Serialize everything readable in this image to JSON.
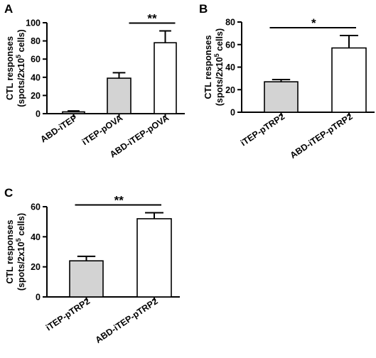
{
  "chart_data": [
    {
      "panel_label": "A",
      "type": "bar",
      "ylabel_line1": "CTL responses",
      "ylabel_line2_prefix": "(spots/2x10",
      "ylabel_line2_sup": "5",
      "ylabel_line2_suffix": " cells)",
      "ylim": [
        0,
        100
      ],
      "yticks": [
        "0",
        "20",
        "40",
        "60",
        "80",
        "100"
      ],
      "categories": [
        "ABD-iTEP",
        "iTEP-pOVA",
        "ABD-iTEP-pOVA"
      ],
      "values": [
        2,
        39,
        78
      ],
      "errors": [
        1,
        6,
        13
      ],
      "bar_colors": [
        "#d3d3d3",
        "#d3d3d3",
        "#ffffff"
      ],
      "significance": {
        "between": [
          1,
          2
        ],
        "label": "**"
      }
    },
    {
      "panel_label": "B",
      "type": "bar",
      "ylabel_line1": "CTL responses",
      "ylabel_line2_prefix": "(spots/2x10",
      "ylabel_line2_sup": "5",
      "ylabel_line2_suffix": " cells)",
      "ylim": [
        0,
        80
      ],
      "yticks": [
        "0",
        "20",
        "40",
        "60",
        "80"
      ],
      "categories": [
        "iTEP-pTRP2",
        "ABD-iTEP-pTRP2"
      ],
      "values": [
        27,
        57
      ],
      "errors": [
        2,
        11
      ],
      "bar_colors": [
        "#d3d3d3",
        "#ffffff"
      ],
      "significance": {
        "between": [
          0,
          1
        ],
        "label": "*"
      }
    },
    {
      "panel_label": "C",
      "type": "bar",
      "ylabel_line1": "CTL responses",
      "ylabel_line2_prefix": "(spots/2x10",
      "ylabel_line2_sup": "5",
      "ylabel_line2_suffix": " cells)",
      "ylim": [
        0,
        60
      ],
      "yticks": [
        "0",
        "20",
        "40",
        "60"
      ],
      "categories": [
        "iTEP-pTRP2",
        "ABD-iTEP-pTRP2"
      ],
      "values": [
        24,
        52
      ],
      "errors": [
        3,
        4
      ],
      "bar_colors": [
        "#d3d3d3",
        "#ffffff"
      ],
      "significance": {
        "between": [
          0,
          1
        ],
        "label": "**"
      }
    }
  ]
}
